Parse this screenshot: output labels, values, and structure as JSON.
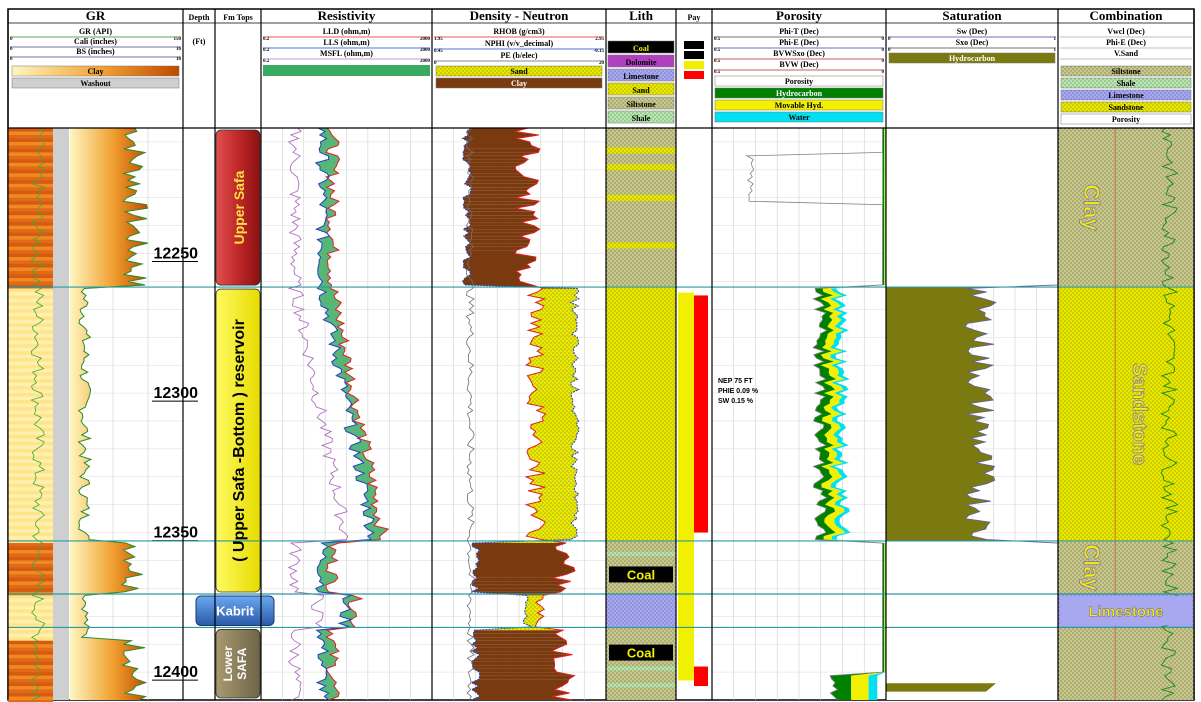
{
  "chart_data": {
    "type": "well-log",
    "depth_unit": "(Ft)",
    "depth_range": [
      12205,
      12410
    ],
    "depth_ticks": [
      "12250",
      "12300",
      "12350",
      "12400"
    ],
    "tracks": {
      "gr": {
        "title": "GR",
        "curves": [
          {
            "name": "GR (API)",
            "min": "0",
            "max": "150"
          },
          {
            "name": "Cali (inches)",
            "min": "6",
            "max": "16"
          },
          {
            "name": "BS (inches)",
            "min": "6",
            "max": "16"
          }
        ],
        "legend": [
          {
            "label": "Clay",
            "color": "#f0b050"
          },
          {
            "label": "Washout",
            "color": "#cfcfcf"
          }
        ]
      },
      "depth": {
        "title": "Depth"
      },
      "fm_tops": {
        "title": "Fm Tops"
      },
      "resistivity": {
        "title": "Resistivity",
        "curves": [
          {
            "name": "LLD (ohm,m)",
            "min": "0.2",
            "max": "2000",
            "color": "#e02020"
          },
          {
            "name": "LLS (ohm,m)",
            "min": "0.2",
            "max": "2000",
            "color": "#2040c0"
          },
          {
            "name": "MSFL (ohm,m)",
            "min": "0.2",
            "max": "2000",
            "color": "#b070c0"
          }
        ],
        "fill_color": "#3aaa60"
      },
      "density_neutron": {
        "title": "Density - Neutron",
        "curves": [
          {
            "name": "RHOB (g/cm3)",
            "min": "1.95",
            "max": "2.95",
            "color": "#e02020"
          },
          {
            "name": "NPHI (v/v_decimal)",
            "min": "0.45",
            "max": "-0.15",
            "color": "#2040c0"
          },
          {
            "name": "PE (b/elec)",
            "min": "0",
            "max": "20",
            "color": "#606060"
          }
        ],
        "legend": [
          {
            "label": "Sand",
            "color": "#d8d800"
          },
          {
            "label": "Clay",
            "color": "#7a3a10"
          }
        ]
      },
      "lith": {
        "title": "Lith",
        "legend": [
          {
            "label": "Coal",
            "color": "#000000"
          },
          {
            "label": "Dolomite",
            "color": "#b040c0"
          },
          {
            "label": "Limestone",
            "color": "#a8a8f0"
          },
          {
            "label": "Sand",
            "color": "#e8e800"
          },
          {
            "label": "Siltstone",
            "color": "#c8c890"
          },
          {
            "label": "Shale",
            "color": "#b8e8b8"
          }
        ]
      },
      "pay": {
        "title": "Pay"
      },
      "porosity": {
        "title": "Porosity",
        "curves": [
          {
            "name": "Phi-T (Dec)",
            "min": "0.5",
            "max": "0"
          },
          {
            "name": "Phi-E (Dec)",
            "min": "0.5",
            "max": "0"
          },
          {
            "name": "BVWSxo (Dec)",
            "min": "0.5",
            "max": "0"
          },
          {
            "name": "BVW (Dec)",
            "min": "0.5",
            "max": "0"
          }
        ],
        "legend": [
          {
            "label": "Porosity",
            "color": "#ffffff"
          },
          {
            "label": "Hydrocarbon",
            "color": "#008000"
          },
          {
            "label": "Movable Hyd.",
            "color": "#f0f000"
          },
          {
            "label": "Water",
            "color": "#00e0f0"
          }
        ],
        "annotation": [
          "NEP 75 FT",
          "PHIE 0.09 %",
          "SW  0.15 %"
        ]
      },
      "saturation": {
        "title": "Saturation",
        "curves": [
          {
            "name": "Sw (Dec)",
            "min": "0",
            "max": "1"
          },
          {
            "name": "Sxo (Dec)",
            "min": "0",
            "max": "1"
          }
        ],
        "legend": [
          {
            "label": "Hydrocarbon",
            "color": "#7a7a10"
          }
        ]
      },
      "combination": {
        "title": "Combination",
        "curves": [
          {
            "name": "Vwcl (Dec)"
          },
          {
            "name": "Phi-E (Dec)"
          },
          {
            "name": "V.Sand"
          }
        ],
        "legend": [
          {
            "label": "Siltstone",
            "color": "#c8c890"
          },
          {
            "label": "Shale",
            "color": "#b8e8b8"
          },
          {
            "label": "Limestone",
            "color": "#a8a8f0"
          },
          {
            "label": "Sandstone",
            "color": "#e8e800"
          },
          {
            "label": "Porosity",
            "color": "#ffffff"
          }
        ]
      }
    },
    "formations": [
      {
        "label": "Upper Safa",
        "top": 12205,
        "base": 12262,
        "color": "#c03030"
      },
      {
        "label": "( Upper  Safa -Bottom ) reservoir",
        "top": 12262,
        "base": 12372,
        "color": "#f0f000"
      },
      {
        "label": "Kabrit",
        "top": 12372,
        "base": 12384,
        "color": "#3070c0"
      },
      {
        "label": "Lower SAFA",
        "top": 12384,
        "base": 12410,
        "color": "#8a8060"
      }
    ],
    "zone_boundaries": [
      12262,
      12353,
      12372,
      12384
    ],
    "zone_labels": [
      {
        "label": "Clay",
        "top": 12205,
        "base": 12262
      },
      {
        "label": "Sandstone",
        "top": 12262,
        "base": 12353
      },
      {
        "label": "Clay",
        "top": 12353,
        "base": 12372
      },
      {
        "label": "Limestone",
        "top": 12372,
        "base": 12384
      }
    ],
    "coal_labels": [
      {
        "label": "Coal",
        "depth": 12365
      },
      {
        "label": "Coal",
        "depth": 12393
      }
    ],
    "pay_interval": [
      12264,
      12403
    ]
  }
}
